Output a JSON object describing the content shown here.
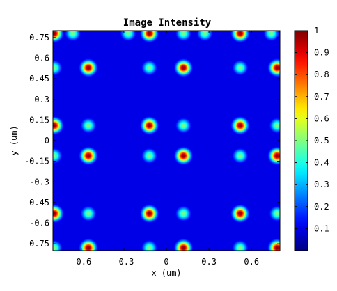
{
  "chart_data": {
    "type": "heatmap",
    "title": "Image Intensity",
    "xlabel": "x (um)",
    "ylabel": "y (um)",
    "xlim": [
      -0.8,
      0.8
    ],
    "ylim": [
      -0.8,
      0.8
    ],
    "x_ticks": [
      -0.6,
      -0.3,
      0,
      0.3,
      0.6
    ],
    "x_tick_labels": [
      "-0.6",
      "-0.3",
      "0",
      "0.3",
      "0.6"
    ],
    "y_ticks": [
      0.75,
      0.6,
      0.45,
      0.3,
      0.15,
      0,
      -0.15,
      -0.3,
      -0.45,
      -0.6,
      -0.75
    ],
    "y_tick_labels": [
      "0.75",
      "0.6",
      "0.45",
      "0.3",
      "0.15",
      "0",
      "-0.15",
      "-0.3",
      "-0.45",
      "-0.6",
      "-0.75"
    ],
    "colorbar": {
      "range": [
        0,
        1
      ],
      "ticks": [
        0.1,
        0.2,
        0.3,
        0.4,
        0.5,
        0.6,
        0.7,
        0.8,
        0.9,
        1
      ],
      "tick_labels": [
        "0.1",
        "0.2",
        "0.3",
        "0.4",
        "0.5",
        "0.6",
        "0.7",
        "0.8",
        "0.9",
        "1"
      ],
      "colormap": "jet"
    },
    "background_intensity": 0.1,
    "spot_sigma": 0.032,
    "spots": [
      {
        "x": -0.79,
        "y": 0.78,
        "intensity": 1.0
      },
      {
        "x": -0.66,
        "y": 0.78,
        "intensity": 0.5
      },
      {
        "x": -0.27,
        "y": 0.78,
        "intensity": 0.5
      },
      {
        "x": -0.12,
        "y": 0.78,
        "intensity": 1.0
      },
      {
        "x": 0.12,
        "y": 0.78,
        "intensity": 0.5
      },
      {
        "x": 0.27,
        "y": 0.78,
        "intensity": 0.5
      },
      {
        "x": 0.52,
        "y": 0.78,
        "intensity": 1.0
      },
      {
        "x": 0.74,
        "y": 0.78,
        "intensity": 0.5
      },
      {
        "x": -0.79,
        "y": 0.53,
        "intensity": 0.5
      },
      {
        "x": -0.55,
        "y": 0.53,
        "intensity": 1.0
      },
      {
        "x": -0.12,
        "y": 0.53,
        "intensity": 0.5
      },
      {
        "x": 0.12,
        "y": 0.53,
        "intensity": 1.0
      },
      {
        "x": 0.52,
        "y": 0.53,
        "intensity": 0.5
      },
      {
        "x": 0.78,
        "y": 0.53,
        "intensity": 1.0
      },
      {
        "x": -0.79,
        "y": 0.11,
        "intensity": 1.0
      },
      {
        "x": -0.55,
        "y": 0.11,
        "intensity": 0.5
      },
      {
        "x": -0.12,
        "y": 0.11,
        "intensity": 1.0
      },
      {
        "x": 0.12,
        "y": 0.11,
        "intensity": 0.5
      },
      {
        "x": 0.52,
        "y": 0.11,
        "intensity": 1.0
      },
      {
        "x": 0.78,
        "y": 0.11,
        "intensity": 0.5
      },
      {
        "x": -0.79,
        "y": -0.11,
        "intensity": 0.5
      },
      {
        "x": -0.55,
        "y": -0.11,
        "intensity": 1.0
      },
      {
        "x": -0.12,
        "y": -0.11,
        "intensity": 0.5
      },
      {
        "x": 0.12,
        "y": -0.11,
        "intensity": 1.0
      },
      {
        "x": 0.52,
        "y": -0.11,
        "intensity": 0.5
      },
      {
        "x": 0.78,
        "y": -0.11,
        "intensity": 1.0
      },
      {
        "x": -0.79,
        "y": -0.53,
        "intensity": 1.0
      },
      {
        "x": -0.55,
        "y": -0.53,
        "intensity": 0.5
      },
      {
        "x": -0.12,
        "y": -0.53,
        "intensity": 1.0
      },
      {
        "x": 0.12,
        "y": -0.53,
        "intensity": 0.5
      },
      {
        "x": 0.52,
        "y": -0.53,
        "intensity": 1.0
      },
      {
        "x": 0.78,
        "y": -0.53,
        "intensity": 0.5
      },
      {
        "x": -0.79,
        "y": -0.78,
        "intensity": 0.5
      },
      {
        "x": -0.55,
        "y": -0.78,
        "intensity": 1.0
      },
      {
        "x": -0.12,
        "y": -0.78,
        "intensity": 0.5
      },
      {
        "x": 0.12,
        "y": -0.78,
        "intensity": 1.0
      },
      {
        "x": 0.52,
        "y": -0.78,
        "intensity": 0.5
      },
      {
        "x": 0.78,
        "y": -0.78,
        "intensity": 1.0
      }
    ]
  }
}
